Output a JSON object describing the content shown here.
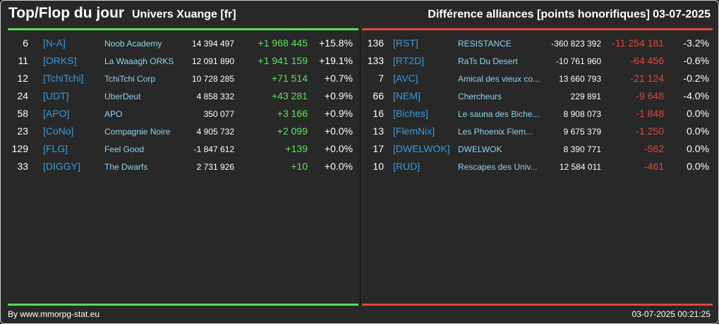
{
  "header": {
    "title": "Top/Flop du jour",
    "universe": "Univers Xuange [fr]",
    "subtitle": "Différence alliances [points honorifiques]",
    "date": "03-07-2025"
  },
  "colors": {
    "top_bar": "#55e055",
    "flop_bar": "#e0473e",
    "tag": "#3a9ad9",
    "name": "#8fd3f5",
    "positive": "#5ee35e",
    "negative": "#e0473e"
  },
  "top": [
    {
      "rank": "6",
      "tag": "[N-A]",
      "name": "Noob Academy",
      "points": "14 394 497",
      "diff": "+1 968 445",
      "pct": "+15.8%"
    },
    {
      "rank": "11",
      "tag": "[ORKS]",
      "name": "La Waaagh ORKS",
      "points": "12 091 890",
      "diff": "+1 941 159",
      "pct": "+19.1%"
    },
    {
      "rank": "12",
      "tag": "[TchiTchi]",
      "name": "TchiTchi Corp",
      "points": "10 728 285",
      "diff": "+71 514",
      "pct": "+0.7%"
    },
    {
      "rank": "24",
      "tag": "[UDT]",
      "name": "UberDeut",
      "points": "4 858 332",
      "diff": "+43 281",
      "pct": "+0.9%"
    },
    {
      "rank": "58",
      "tag": "[APO]",
      "name": "APO",
      "points": "350 077",
      "diff": "+3 166",
      "pct": "+0.9%"
    },
    {
      "rank": "23",
      "tag": "[CoNo]",
      "name": "Compagnie Noire",
      "points": "4 905 732",
      "diff": "+2 099",
      "pct": "+0.0%"
    },
    {
      "rank": "129",
      "tag": "[FLG]",
      "name": "Feel Good",
      "points": "-1 847 612",
      "diff": "+139",
      "pct": "+0.0%"
    },
    {
      "rank": "33",
      "tag": "[DIGGY]",
      "name": "The Dwarfs",
      "points": "2 731 926",
      "diff": "+10",
      "pct": "+0.0%"
    }
  ],
  "flop": [
    {
      "rank": "136",
      "tag": "[RST]",
      "name": "RESISTANCE",
      "points": "-360 823 392",
      "diff": "-11 254 181",
      "pct": "-3.2%"
    },
    {
      "rank": "133",
      "tag": "[RT2D]",
      "name": "RaTs Du Desert",
      "points": "-10 761 960",
      "diff": "-64 456",
      "pct": "-0.6%"
    },
    {
      "rank": "7",
      "tag": "[AVC]",
      "name": "Amical des vieux co...",
      "points": "13 660 793",
      "diff": "-21 124",
      "pct": "-0.2%"
    },
    {
      "rank": "66",
      "tag": "[NEM]",
      "name": "Chercheurs",
      "points": "229 891",
      "diff": "-9 648",
      "pct": "-4.0%"
    },
    {
      "rank": "16",
      "tag": "[Biches]",
      "name": "Le sauna des Biche...",
      "points": "8 908 073",
      "diff": "-1 848",
      "pct": "0.0%"
    },
    {
      "rank": "13",
      "tag": "[FlemNix]",
      "name": "Les Phoenix Flem...",
      "points": "9 675 379",
      "diff": "-1 250",
      "pct": "0.0%"
    },
    {
      "rank": "17",
      "tag": "[DWELWOK]",
      "name": "DWELWOK",
      "points": "8 390 771",
      "diff": "-562",
      "pct": "0.0%"
    },
    {
      "rank": "10",
      "tag": "[RUD]",
      "name": "Rescapes des Univ...",
      "points": "12 584 011",
      "diff": "-461",
      "pct": "0.0%"
    }
  ],
  "footer": {
    "credit": "By www.mmorpg-stat.eu",
    "timestamp": "03-07-2025 00:21:25"
  }
}
